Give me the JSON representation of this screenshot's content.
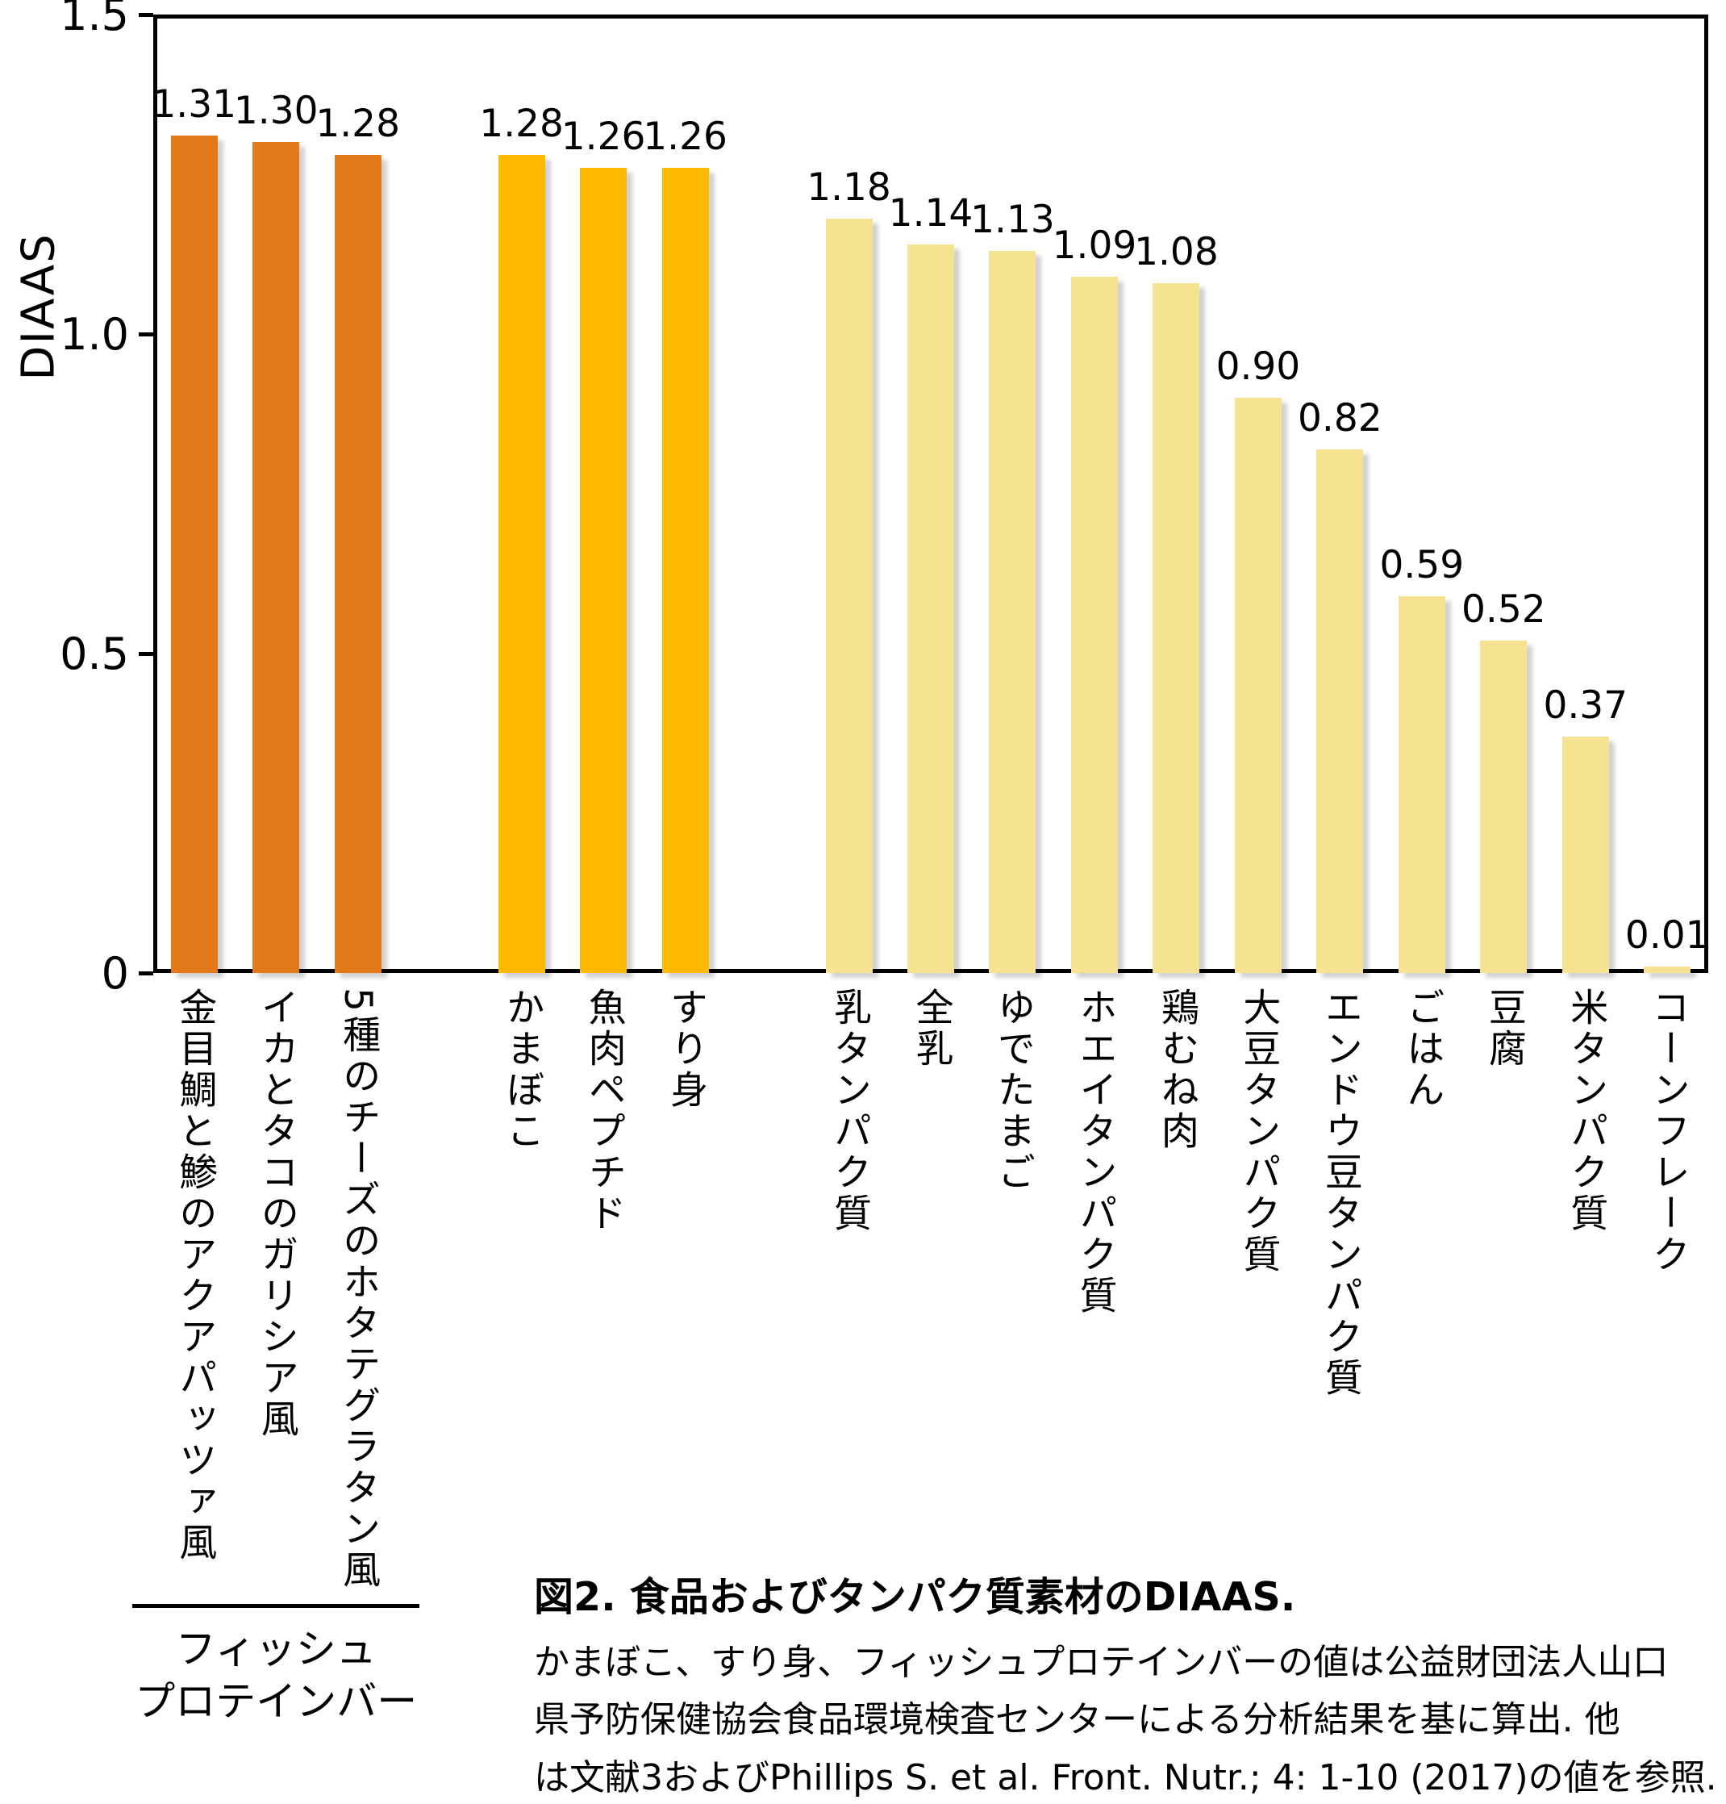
{
  "figure": {
    "background": "#ffffff"
  },
  "chart_data": {
    "type": "bar",
    "title": "",
    "xlabel": "",
    "ylabel": "DIAAS",
    "ylim": [
      0,
      1.5
    ],
    "grid": false,
    "legend": "none",
    "yticks": [
      {
        "value": 0,
        "label": "0"
      },
      {
        "value": 0.5,
        "label": "0.5"
      },
      {
        "value": 1.0,
        "label": "1.0"
      },
      {
        "value": 1.5,
        "label": "1.5"
      }
    ],
    "slot_count": 19,
    "bar_colors": {
      "fish_protein_bar": "#e4791c",
      "kamaboko_group": "#fcb900",
      "reference_foods": "#f6e391"
    },
    "bars": [
      {
        "slot": 0,
        "category": "金目鯛と鯵のアクアパッツァ風",
        "value": 1.31,
        "label": "1.31",
        "group": "fish_protein_bar"
      },
      {
        "slot": 1,
        "category": "イカとタコのガリシア風",
        "value": 1.3,
        "label": "1.30",
        "group": "fish_protein_bar"
      },
      {
        "slot": 2,
        "category": "5種のチーズのホタテグラタン風",
        "value": 1.28,
        "label": "1.28",
        "group": "fish_protein_bar"
      },
      {
        "slot": 4,
        "category": "かまぼこ",
        "value": 1.28,
        "label": "1.28",
        "group": "kamaboko_group"
      },
      {
        "slot": 5,
        "category": "魚肉ペプチド",
        "value": 1.26,
        "label": "1.26",
        "group": "kamaboko_group"
      },
      {
        "slot": 6,
        "category": "すり身",
        "value": 1.26,
        "label": "1.26",
        "group": "kamaboko_group"
      },
      {
        "slot": 8,
        "category": "乳タンパク質",
        "value": 1.18,
        "label": "1.18",
        "group": "reference_foods"
      },
      {
        "slot": 9,
        "category": "全乳",
        "value": 1.14,
        "label": "1.14",
        "group": "reference_foods"
      },
      {
        "slot": 10,
        "category": "ゆでたまご",
        "value": 1.13,
        "label": "1.13",
        "group": "reference_foods"
      },
      {
        "slot": 11,
        "category": "ホエイタンパク質",
        "value": 1.09,
        "label": "1.09",
        "group": "reference_foods"
      },
      {
        "slot": 12,
        "category": "鶏むね肉",
        "value": 1.08,
        "label": "1.08",
        "group": "reference_foods"
      },
      {
        "slot": 13,
        "category": "大豆タンパク質",
        "value": 0.9,
        "label": "0.90",
        "group": "reference_foods"
      },
      {
        "slot": 14,
        "category": "エンドウ豆タンパク質",
        "value": 0.82,
        "label": "0.82",
        "group": "reference_foods"
      },
      {
        "slot": 15,
        "category": "ごはん",
        "value": 0.59,
        "label": "0.59",
        "group": "reference_foods"
      },
      {
        "slot": 16,
        "category": "豆腐",
        "value": 0.52,
        "label": "0.52",
        "group": "reference_foods"
      },
      {
        "slot": 17,
        "category": "米タンパク質",
        "value": 0.37,
        "label": "0.37",
        "group": "reference_foods"
      },
      {
        "slot": 18,
        "category": "コーンフレーク",
        "value": 0.01,
        "label": "0.01",
        "group": "reference_foods"
      }
    ],
    "group_bracket": {
      "line1": "フィッシュ",
      "line2": "プロテインバー",
      "from_slot": 0,
      "to_slot": 2
    }
  },
  "caption": {
    "title": "図2. 食品およびタンパク質素材のDIAAS.",
    "body_lines": [
      "かまぼこ、すり身、フィッシュプロテインバーの値は公益財団法人山口",
      "県予防保健協会食品環境検査センターによる分析結果を基に算出. 他",
      "は文献3およびPhillips S. et al. Front. Nutr.; 4: 1-10 (2017)の値を参照."
    ]
  }
}
